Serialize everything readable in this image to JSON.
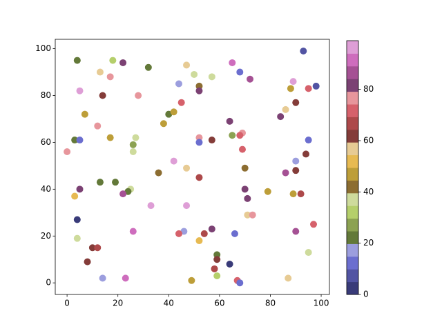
{
  "chart_data": {
    "type": "scatter",
    "x": [
      93,
      4,
      18,
      22,
      32,
      47,
      65,
      68,
      13,
      17,
      50,
      57,
      72,
      89,
      44,
      52,
      88,
      95,
      98,
      5,
      52,
      14,
      28,
      45,
      90,
      7,
      40,
      42,
      86,
      84,
      64,
      38,
      12,
      69,
      68,
      65,
      17,
      27,
      52,
      57,
      3,
      5,
      95,
      52,
      26,
      69,
      0,
      26,
      94,
      42,
      90,
      47,
      70,
      90,
      86,
      36,
      52,
      13,
      19,
      5,
      25,
      70,
      79,
      24,
      22,
      89,
      92,
      3,
      71,
      33,
      47,
      71,
      73,
      4,
      97,
      57,
      26,
      46,
      90,
      44,
      54,
      66,
      4,
      52,
      10,
      12,
      59,
      95,
      59,
      8,
      64,
      58,
      59,
      14,
      23,
      87,
      49,
      67,
      68
    ],
    "y": [
      99,
      95,
      95,
      94,
      92,
      93,
      94,
      90,
      90,
      88,
      89,
      88,
      87,
      86,
      85,
      84,
      83,
      83,
      84,
      82,
      82,
      80,
      80,
      77,
      77,
      72,
      72,
      73,
      74,
      71,
      69,
      68,
      67,
      64,
      63,
      63,
      62,
      62,
      62,
      61,
      61,
      61,
      61,
      60,
      59,
      57,
      56,
      56,
      55,
      52,
      52,
      49,
      49,
      48,
      47,
      47,
      45,
      43,
      43,
      40,
      40,
      40,
      39,
      39,
      38,
      38,
      38,
      37,
      36,
      33,
      33,
      29,
      29,
      27,
      25,
      23,
      22,
      22,
      22,
      21,
      21,
      21,
      19,
      18,
      15,
      15,
      12,
      13,
      10,
      9,
      8,
      6,
      3,
      2,
      2,
      2,
      1,
      1,
      0
    ],
    "c": [
      7,
      22,
      32,
      82,
      22,
      57,
      92,
      12,
      57,
      77,
      37,
      37,
      87,
      97,
      17,
      42,
      47,
      72,
      7,
      97,
      82,
      62,
      77,
      72,
      62,
      47,
      22,
      47,
      57,
      82,
      82,
      47,
      77,
      77,
      72,
      27,
      47,
      37,
      77,
      62,
      22,
      12,
      12,
      12,
      27,
      72,
      77,
      37,
      62,
      97,
      17,
      57,
      42,
      62,
      87,
      42,
      67,
      22,
      22,
      82,
      37,
      82,
      47,
      22,
      87,
      47,
      67,
      52,
      82,
      97,
      97,
      57,
      77,
      2,
      72,
      82,
      92,
      17,
      87,
      72,
      67,
      12,
      37,
      52,
      62,
      67,
      22,
      37,
      62,
      62,
      2,
      67,
      32,
      17,
      92,
      57,
      47,
      72,
      12
    ],
    "colormap": [
      "#393b79",
      "#5254a3",
      "#6b6ecf",
      "#9c9ede",
      "#637939",
      "#8ca252",
      "#b5cf6b",
      "#cedb9c",
      "#8c6d31",
      "#bd9e39",
      "#e7ba52",
      "#e7cb94",
      "#843c39",
      "#ad494a",
      "#d6616b",
      "#e7969c",
      "#7b4173",
      "#a55194",
      "#ce6dbd",
      "#de9ed6"
    ],
    "clim": [
      0,
      99
    ],
    "cticks": [
      0,
      20,
      40,
      60,
      80
    ],
    "xlim": [
      -4.65,
      103.25
    ],
    "ylim": [
      -4.95,
      104
    ],
    "xticks": [
      0,
      20,
      40,
      60,
      80,
      100
    ],
    "yticks": [
      0,
      20,
      40,
      60,
      80,
      100
    ]
  }
}
